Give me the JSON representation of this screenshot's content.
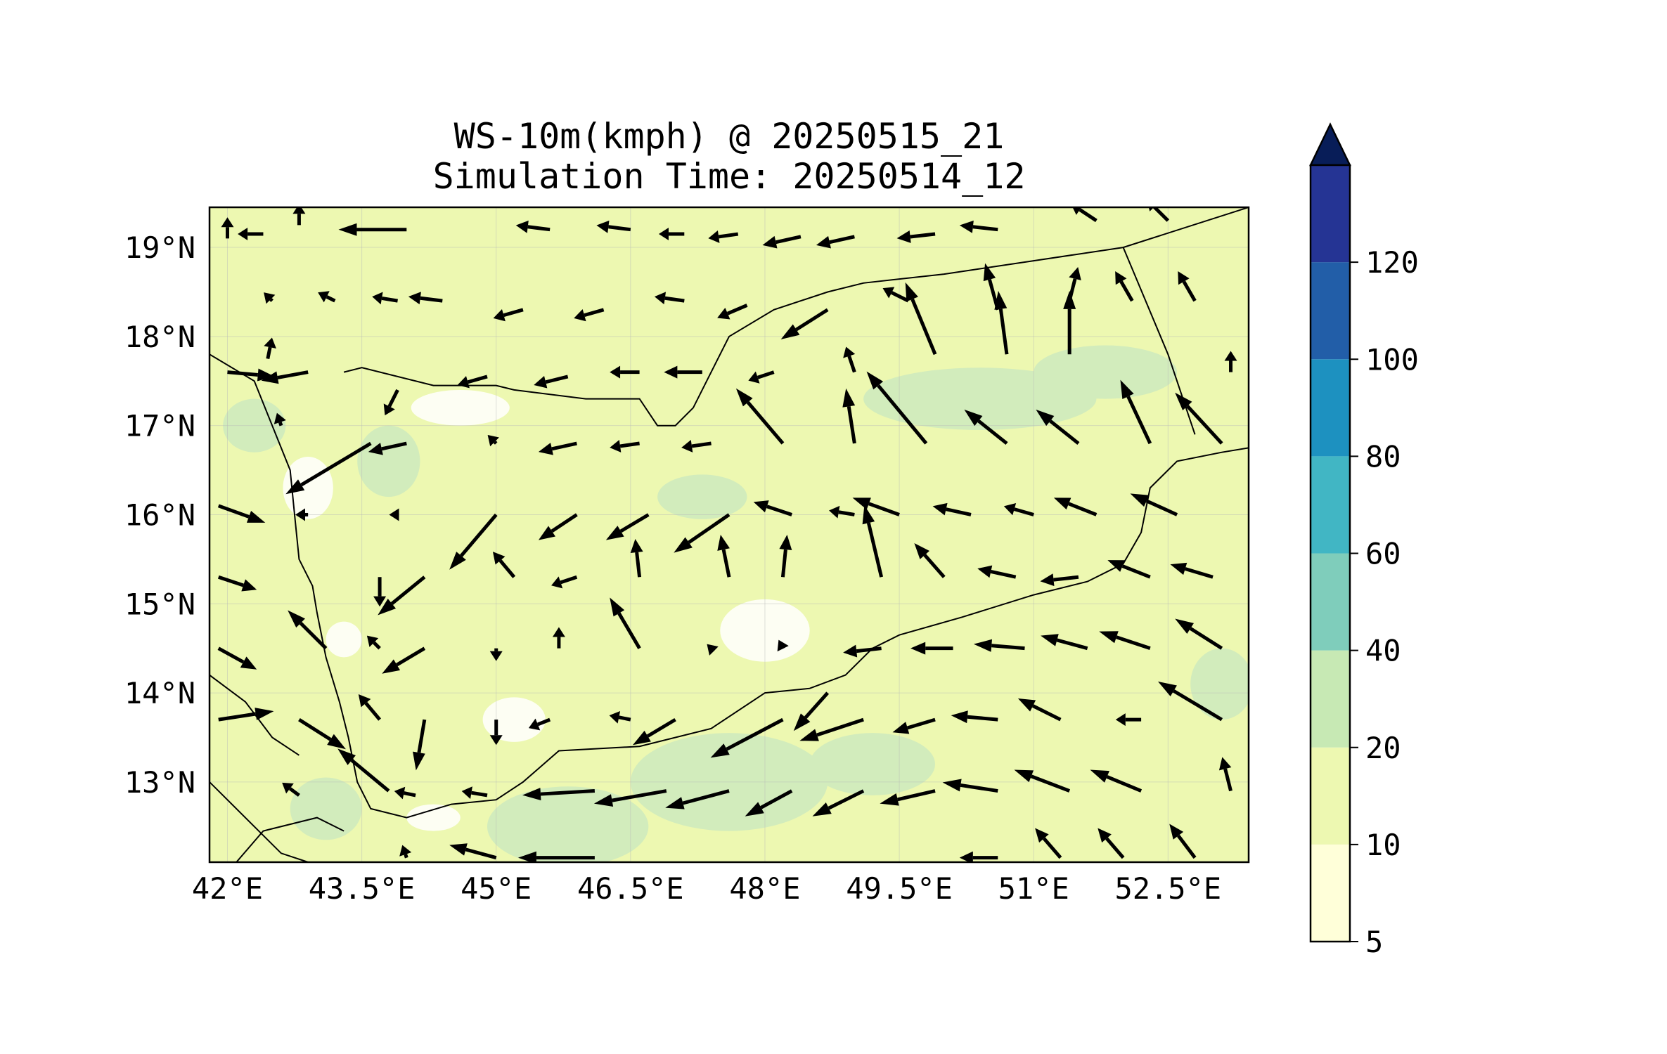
{
  "title": {
    "line1": "WS-10m(kmph) @ 20250515_21",
    "line2": "Simulation Time: 20250514_12"
  },
  "map": {
    "lon_range": [
      41.8,
      53.4
    ],
    "lat_range": [
      12.1,
      19.45
    ],
    "x_ticks": [
      {
        "value": 42.0,
        "label": "42°E"
      },
      {
        "value": 43.5,
        "label": "43.5°E"
      },
      {
        "value": 45.0,
        "label": "45°E"
      },
      {
        "value": 46.5,
        "label": "46.5°E"
      },
      {
        "value": 48.0,
        "label": "48°E"
      },
      {
        "value": 49.5,
        "label": "49.5°E"
      },
      {
        "value": 51.0,
        "label": "51°E"
      },
      {
        "value": 52.5,
        "label": "52.5°E"
      }
    ],
    "y_ticks": [
      {
        "value": 19,
        "label": "19°N"
      },
      {
        "value": 18,
        "label": "18°N"
      },
      {
        "value": 17,
        "label": "17°N"
      },
      {
        "value": 16,
        "label": "16°N"
      },
      {
        "value": 15,
        "label": "15°N"
      },
      {
        "value": 14,
        "label": "14°N"
      },
      {
        "value": 13,
        "label": "13°N"
      }
    ],
    "background_color": "#edf8b1",
    "grid": true
  },
  "colorbar": {
    "levels": [
      5,
      10,
      20,
      40,
      60,
      80,
      100,
      120
    ],
    "labels": [
      "5",
      "10",
      "20",
      "40",
      "60",
      "80",
      "100",
      "120"
    ],
    "colors": [
      "#ffffd9",
      "#edf8b1",
      "#c7e9b4",
      "#7fcdbb",
      "#41b6c4",
      "#1d91c0",
      "#225ea8",
      "#253494"
    ],
    "extend_color": "#081d58",
    "extend": "max"
  },
  "contour_patches": {
    "band_20_40_color": "#d2ecbc",
    "band_5_10_color": "#ffffff",
    "patches_20_40": [
      {
        "lon": 45.8,
        "lat": 12.5,
        "rlon": 0.9,
        "rlat": 0.45
      },
      {
        "lon": 47.6,
        "lat": 13.0,
        "rlon": 1.1,
        "rlat": 0.55
      },
      {
        "lon": 49.2,
        "lat": 13.2,
        "rlon": 0.7,
        "rlat": 0.35
      },
      {
        "lon": 50.4,
        "lat": 17.3,
        "rlon": 1.3,
        "rlat": 0.35
      },
      {
        "lon": 51.8,
        "lat": 17.6,
        "rlon": 0.8,
        "rlat": 0.3
      },
      {
        "lon": 53.1,
        "lat": 14.1,
        "rlon": 0.35,
        "rlat": 0.4
      },
      {
        "lon": 43.1,
        "lat": 12.7,
        "rlon": 0.4,
        "rlat": 0.35
      },
      {
        "lon": 42.3,
        "lat": 17.0,
        "rlon": 0.35,
        "rlat": 0.3
      },
      {
        "lon": 43.8,
        "lat": 16.6,
        "rlon": 0.35,
        "rlat": 0.4
      },
      {
        "lon": 47.3,
        "lat": 16.2,
        "rlon": 0.5,
        "rlat": 0.25
      }
    ],
    "patches_low": [
      {
        "lon": 42.9,
        "lat": 16.3,
        "rlon": 0.28,
        "rlat": 0.35
      },
      {
        "lon": 44.6,
        "lat": 17.2,
        "rlon": 0.55,
        "rlat": 0.2
      },
      {
        "lon": 48.0,
        "lat": 14.7,
        "rlon": 0.5,
        "rlat": 0.35
      },
      {
        "lon": 45.2,
        "lat": 13.7,
        "rlon": 0.35,
        "rlat": 0.25
      },
      {
        "lon": 44.3,
        "lat": 12.6,
        "rlon": 0.3,
        "rlat": 0.15
      },
      {
        "lon": 43.3,
        "lat": 14.6,
        "rlon": 0.2,
        "rlat": 0.2
      }
    ]
  },
  "wind_vectors": [
    {
      "lon": 42.0,
      "lat": 19.1,
      "u": 0.0,
      "v": 0.25
    },
    {
      "lon": 42.4,
      "lat": 19.15,
      "u": -0.3,
      "v": 0.0
    },
    {
      "lon": 42.8,
      "lat": 19.25,
      "u": 0.0,
      "v": 0.25
    },
    {
      "lon": 44.0,
      "lat": 19.2,
      "u": -0.8,
      "v": 0.0
    },
    {
      "lon": 45.6,
      "lat": 19.2,
      "u": -0.4,
      "v": 0.05
    },
    {
      "lon": 46.5,
      "lat": 19.2,
      "u": -0.4,
      "v": 0.05
    },
    {
      "lon": 47.1,
      "lat": 19.15,
      "u": -0.3,
      "v": 0.0
    },
    {
      "lon": 47.7,
      "lat": 19.15,
      "u": -0.35,
      "v": -0.05
    },
    {
      "lon": 48.4,
      "lat": 19.12,
      "u": -0.45,
      "v": -0.1
    },
    {
      "lon": 49.0,
      "lat": 19.12,
      "u": -0.45,
      "v": -0.1
    },
    {
      "lon": 49.9,
      "lat": 19.15,
      "u": -0.45,
      "v": -0.05
    },
    {
      "lon": 50.6,
      "lat": 19.2,
      "u": -0.45,
      "v": 0.05
    },
    {
      "lon": 51.7,
      "lat": 19.3,
      "u": -0.3,
      "v": 0.2
    },
    {
      "lon": 52.5,
      "lat": 19.3,
      "u": -0.25,
      "v": 0.25
    },
    {
      "lon": 42.5,
      "lat": 18.4,
      "u": -0.1,
      "v": 0.1
    },
    {
      "lon": 43.2,
      "lat": 18.4,
      "u": -0.2,
      "v": 0.1
    },
    {
      "lon": 43.9,
      "lat": 18.4,
      "u": -0.3,
      "v": 0.05
    },
    {
      "lon": 44.4,
      "lat": 18.4,
      "u": -0.4,
      "v": 0.05
    },
    {
      "lon": 45.3,
      "lat": 18.3,
      "u": -0.35,
      "v": -0.1
    },
    {
      "lon": 46.2,
      "lat": 18.3,
      "u": -0.35,
      "v": -0.1
    },
    {
      "lon": 47.1,
      "lat": 18.4,
      "u": -0.35,
      "v": 0.05
    },
    {
      "lon": 47.8,
      "lat": 18.35,
      "u": -0.35,
      "v": -0.15
    },
    {
      "lon": 48.7,
      "lat": 18.3,
      "u": -0.55,
      "v": -0.35
    },
    {
      "lon": 49.6,
      "lat": 18.4,
      "u": -0.3,
      "v": 0.15
    },
    {
      "lon": 49.9,
      "lat": 17.8,
      "u": -0.35,
      "v": 0.85
    },
    {
      "lon": 50.7,
      "lat": 17.8,
      "u": -0.1,
      "v": 0.75
    },
    {
      "lon": 51.4,
      "lat": 17.8,
      "u": 0.0,
      "v": 0.75
    },
    {
      "lon": 50.6,
      "lat": 18.3,
      "u": -0.15,
      "v": 0.55
    },
    {
      "lon": 51.4,
      "lat": 18.4,
      "u": 0.1,
      "v": 0.4
    },
    {
      "lon": 52.1,
      "lat": 18.4,
      "u": -0.2,
      "v": 0.35
    },
    {
      "lon": 52.8,
      "lat": 18.4,
      "u": -0.2,
      "v": 0.35
    },
    {
      "lon": 42.0,
      "lat": 17.6,
      "u": 0.55,
      "v": -0.05
    },
    {
      "lon": 42.9,
      "lat": 17.6,
      "u": -0.55,
      "v": -0.1
    },
    {
      "lon": 42.45,
      "lat": 17.75,
      "u": 0.05,
      "v": 0.25
    },
    {
      "lon": 43.9,
      "lat": 17.4,
      "u": -0.15,
      "v": -0.3
    },
    {
      "lon": 44.9,
      "lat": 17.55,
      "u": -0.35,
      "v": -0.1
    },
    {
      "lon": 45.8,
      "lat": 17.55,
      "u": -0.4,
      "v": -0.1
    },
    {
      "lon": 46.6,
      "lat": 17.6,
      "u": -0.35,
      "v": 0.0
    },
    {
      "lon": 47.3,
      "lat": 17.6,
      "u": -0.45,
      "v": 0.0
    },
    {
      "lon": 48.1,
      "lat": 17.6,
      "u": -0.3,
      "v": -0.1
    },
    {
      "lon": 48.2,
      "lat": 16.8,
      "u": -0.55,
      "v": 0.65
    },
    {
      "lon": 49.0,
      "lat": 16.8,
      "u": -0.1,
      "v": 0.65
    },
    {
      "lon": 49.0,
      "lat": 17.6,
      "u": -0.1,
      "v": 0.3
    },
    {
      "lon": 49.8,
      "lat": 16.8,
      "u": -0.7,
      "v": 0.85
    },
    {
      "lon": 50.7,
      "lat": 16.8,
      "u": -0.5,
      "v": 0.4
    },
    {
      "lon": 51.5,
      "lat": 16.8,
      "u": -0.5,
      "v": 0.4
    },
    {
      "lon": 52.3,
      "lat": 16.8,
      "u": -0.35,
      "v": 0.75
    },
    {
      "lon": 53.1,
      "lat": 16.8,
      "u": -0.55,
      "v": 0.6
    },
    {
      "lon": 53.2,
      "lat": 17.6,
      "u": 0.0,
      "v": 0.25
    },
    {
      "lon": 42.6,
      "lat": 17.0,
      "u": -0.05,
      "v": 0.15
    },
    {
      "lon": 43.6,
      "lat": 16.8,
      "u": -1.0,
      "v": -0.6
    },
    {
      "lon": 44.0,
      "lat": 16.8,
      "u": -0.45,
      "v": -0.1
    },
    {
      "lon": 45.0,
      "lat": 16.8,
      "u": -0.1,
      "v": 0.1
    },
    {
      "lon": 45.9,
      "lat": 16.8,
      "u": -0.45,
      "v": -0.1
    },
    {
      "lon": 46.6,
      "lat": 16.8,
      "u": -0.35,
      "v": -0.05
    },
    {
      "lon": 47.4,
      "lat": 16.8,
      "u": -0.35,
      "v": -0.05
    },
    {
      "lon": 41.9,
      "lat": 16.1,
      "u": 0.55,
      "v": -0.2
    },
    {
      "lon": 42.9,
      "lat": 16.0,
      "u": -0.15,
      "v": 0.0
    },
    {
      "lon": 43.9,
      "lat": 16.0,
      "u": -0.1,
      "v": 0.0
    },
    {
      "lon": 45.0,
      "lat": 16.0,
      "u": -0.55,
      "v": -0.65
    },
    {
      "lon": 45.9,
      "lat": 16.0,
      "u": -0.45,
      "v": -0.3
    },
    {
      "lon": 46.7,
      "lat": 16.0,
      "u": -0.5,
      "v": -0.3
    },
    {
      "lon": 47.6,
      "lat": 16.0,
      "u": -0.65,
      "v": -0.45
    },
    {
      "lon": 48.3,
      "lat": 16.0,
      "u": -0.45,
      "v": 0.15
    },
    {
      "lon": 49.0,
      "lat": 16.0,
      "u": -0.3,
      "v": 0.05
    },
    {
      "lon": 49.5,
      "lat": 16.0,
      "u": -0.55,
      "v": 0.2
    },
    {
      "lon": 50.3,
      "lat": 16.0,
      "u": -0.45,
      "v": 0.1
    },
    {
      "lon": 51.0,
      "lat": 16.0,
      "u": -0.35,
      "v": 0.1
    },
    {
      "lon": 51.7,
      "lat": 16.0,
      "u": -0.5,
      "v": 0.2
    },
    {
      "lon": 52.6,
      "lat": 16.0,
      "u": -0.55,
      "v": 0.25
    },
    {
      "lon": 41.9,
      "lat": 15.3,
      "u": 0.45,
      "v": -0.15
    },
    {
      "lon": 43.7,
      "lat": 15.3,
      "u": 0.0,
      "v": -0.35
    },
    {
      "lon": 44.2,
      "lat": 15.3,
      "u": -0.55,
      "v": -0.45
    },
    {
      "lon": 45.2,
      "lat": 15.3,
      "u": -0.25,
      "v": 0.3
    },
    {
      "lon": 45.9,
      "lat": 15.3,
      "u": -0.3,
      "v": -0.1
    },
    {
      "lon": 46.6,
      "lat": 15.3,
      "u": -0.05,
      "v": 0.45
    },
    {
      "lon": 47.6,
      "lat": 15.3,
      "u": -0.1,
      "v": 0.5
    },
    {
      "lon": 48.2,
      "lat": 15.3,
      "u": 0.05,
      "v": 0.5
    },
    {
      "lon": 49.3,
      "lat": 15.3,
      "u": -0.2,
      "v": 0.85
    },
    {
      "lon": 50.0,
      "lat": 15.3,
      "u": -0.35,
      "v": 0.4
    },
    {
      "lon": 50.8,
      "lat": 15.3,
      "u": -0.45,
      "v": 0.1
    },
    {
      "lon": 51.5,
      "lat": 15.3,
      "u": -0.45,
      "v": -0.05
    },
    {
      "lon": 52.3,
      "lat": 15.3,
      "u": -0.5,
      "v": 0.2
    },
    {
      "lon": 53.0,
      "lat": 15.3,
      "u": -0.5,
      "v": 0.15
    },
    {
      "lon": 41.9,
      "lat": 14.5,
      "u": 0.45,
      "v": -0.25
    },
    {
      "lon": 43.1,
      "lat": 14.5,
      "u": -0.45,
      "v": 0.45
    },
    {
      "lon": 43.7,
      "lat": 14.5,
      "u": -0.15,
      "v": 0.15
    },
    {
      "lon": 44.2,
      "lat": 14.5,
      "u": -0.5,
      "v": -0.3
    },
    {
      "lon": 45.0,
      "lat": 14.5,
      "u": 0.0,
      "v": -0.15
    },
    {
      "lon": 45.7,
      "lat": 14.5,
      "u": 0.0,
      "v": 0.25
    },
    {
      "lon": 46.6,
      "lat": 14.5,
      "u": -0.35,
      "v": 0.6
    },
    {
      "lon": 47.4,
      "lat": 14.5,
      "u": -0.05,
      "v": 0.05
    },
    {
      "lon": 48.2,
      "lat": 14.5,
      "u": -0.05,
      "v": 0.1
    },
    {
      "lon": 48.7,
      "lat": 14.0,
      "u": -0.4,
      "v": -0.45
    },
    {
      "lon": 49.3,
      "lat": 14.5,
      "u": -0.45,
      "v": -0.05
    },
    {
      "lon": 50.1,
      "lat": 14.5,
      "u": -0.5,
      "v": 0.0
    },
    {
      "lon": 50.9,
      "lat": 14.5,
      "u": -0.6,
      "v": 0.05
    },
    {
      "lon": 51.6,
      "lat": 14.5,
      "u": -0.55,
      "v": 0.15
    },
    {
      "lon": 52.3,
      "lat": 14.5,
      "u": -0.6,
      "v": 0.2
    },
    {
      "lon": 53.1,
      "lat": 14.5,
      "u": -0.55,
      "v": 0.35
    },
    {
      "lon": 41.9,
      "lat": 13.7,
      "u": 0.65,
      "v": 0.1
    },
    {
      "lon": 42.8,
      "lat": 13.7,
      "u": 0.55,
      "v": -0.35
    },
    {
      "lon": 43.7,
      "lat": 13.7,
      "u": -0.25,
      "v": 0.3
    },
    {
      "lon": 44.2,
      "lat": 13.7,
      "u": -0.1,
      "v": -0.6
    },
    {
      "lon": 45.0,
      "lat": 13.7,
      "u": 0.0,
      "v": -0.3
    },
    {
      "lon": 45.6,
      "lat": 13.7,
      "u": -0.25,
      "v": -0.1
    },
    {
      "lon": 46.5,
      "lat": 13.7,
      "u": -0.25,
      "v": 0.05
    },
    {
      "lon": 47.0,
      "lat": 13.7,
      "u": -0.5,
      "v": -0.3
    },
    {
      "lon": 48.2,
      "lat": 13.7,
      "u": -0.85,
      "v": -0.45
    },
    {
      "lon": 49.1,
      "lat": 13.7,
      "u": -0.75,
      "v": -0.25
    },
    {
      "lon": 49.9,
      "lat": 13.7,
      "u": -0.5,
      "v": -0.15
    },
    {
      "lon": 50.6,
      "lat": 13.7,
      "u": -0.55,
      "v": 0.05
    },
    {
      "lon": 51.3,
      "lat": 13.7,
      "u": -0.5,
      "v": 0.25
    },
    {
      "lon": 52.2,
      "lat": 13.7,
      "u": -0.3,
      "v": 0.0
    },
    {
      "lon": 53.1,
      "lat": 13.7,
      "u": -0.75,
      "v": 0.45
    },
    {
      "lon": 42.8,
      "lat": 12.85,
      "u": -0.2,
      "v": 0.15
    },
    {
      "lon": 43.8,
      "lat": 12.9,
      "u": -0.6,
      "v": 0.5
    },
    {
      "lon": 44.1,
      "lat": 12.85,
      "u": -0.25,
      "v": 0.05
    },
    {
      "lon": 44.9,
      "lat": 12.85,
      "u": -0.3,
      "v": 0.05
    },
    {
      "lon": 46.1,
      "lat": 12.9,
      "u": -0.85,
      "v": -0.05
    },
    {
      "lon": 46.9,
      "lat": 12.9,
      "u": -0.85,
      "v": -0.15
    },
    {
      "lon": 47.6,
      "lat": 12.9,
      "u": -0.75,
      "v": -0.2
    },
    {
      "lon": 48.3,
      "lat": 12.9,
      "u": -0.55,
      "v": -0.3
    },
    {
      "lon": 49.1,
      "lat": 12.9,
      "u": -0.6,
      "v": -0.3
    },
    {
      "lon": 49.9,
      "lat": 12.9,
      "u": -0.65,
      "v": -0.15
    },
    {
      "lon": 50.6,
      "lat": 12.9,
      "u": -0.65,
      "v": 0.1
    },
    {
      "lon": 51.4,
      "lat": 12.9,
      "u": -0.65,
      "v": 0.25
    },
    {
      "lon": 52.2,
      "lat": 12.9,
      "u": -0.6,
      "v": 0.25
    },
    {
      "lon": 53.2,
      "lat": 12.9,
      "u": -0.1,
      "v": 0.4
    },
    {
      "lon": 44.0,
      "lat": 12.15,
      "u": -0.05,
      "v": 0.15
    },
    {
      "lon": 45.0,
      "lat": 12.15,
      "u": -0.55,
      "v": 0.15
    },
    {
      "lon": 46.1,
      "lat": 12.15,
      "u": -0.9,
      "v": 0.0
    },
    {
      "lon": 50.6,
      "lat": 12.15,
      "u": -0.45,
      "v": 0.0
    },
    {
      "lon": 51.3,
      "lat": 12.15,
      "u": -0.3,
      "v": 0.35
    },
    {
      "lon": 52.0,
      "lat": 12.15,
      "u": -0.3,
      "v": 0.35
    },
    {
      "lon": 52.8,
      "lat": 12.15,
      "u": -0.3,
      "v": 0.4
    }
  ],
  "coastlines": {
    "arabia_sw_coast": [
      [
        41.8,
        17.8
      ],
      [
        42.3,
        17.5
      ],
      [
        42.5,
        17.0
      ],
      [
        42.7,
        16.5
      ],
      [
        42.75,
        16.0
      ],
      [
        42.8,
        15.5
      ],
      [
        42.95,
        15.2
      ],
      [
        43.0,
        14.9
      ],
      [
        43.1,
        14.4
      ],
      [
        43.25,
        13.9
      ],
      [
        43.35,
        13.5
      ],
      [
        43.45,
        13.0
      ],
      [
        43.6,
        12.7
      ],
      [
        44.0,
        12.6
      ],
      [
        44.5,
        12.75
      ],
      [
        45.0,
        12.8
      ],
      [
        45.3,
        13.0
      ],
      [
        45.7,
        13.35
      ],
      [
        46.6,
        13.4
      ],
      [
        47.4,
        13.6
      ],
      [
        48.0,
        14.0
      ],
      [
        48.5,
        14.05
      ],
      [
        48.9,
        14.2
      ],
      [
        49.2,
        14.5
      ],
      [
        49.5,
        14.65
      ],
      [
        50.2,
        14.85
      ],
      [
        51.0,
        15.1
      ],
      [
        51.6,
        15.25
      ],
      [
        52.0,
        15.45
      ],
      [
        52.2,
        15.8
      ],
      [
        52.3,
        16.3
      ],
      [
        52.6,
        16.6
      ],
      [
        53.1,
        16.7
      ],
      [
        53.4,
        16.75
      ]
    ],
    "farasan_coast": [
      [
        43.3,
        17.6
      ],
      [
        43.5,
        17.65
      ],
      [
        44.3,
        17.45
      ],
      [
        45.0,
        17.45
      ],
      [
        45.2,
        17.4
      ],
      [
        46.0,
        17.3
      ],
      [
        46.6,
        17.3
      ],
      [
        46.8,
        17.0
      ],
      [
        47.0,
        17.0
      ],
      [
        47.2,
        17.2
      ],
      [
        47.4,
        17.6
      ],
      [
        47.6,
        18.0
      ],
      [
        48.1,
        18.3
      ],
      [
        48.7,
        18.5
      ],
      [
        49.1,
        18.6
      ],
      [
        50.0,
        18.7
      ],
      [
        51.0,
        18.85
      ],
      [
        52.0,
        19.0
      ],
      [
        53.4,
        19.45
      ]
    ],
    "border_east": [
      [
        52.0,
        19.0
      ],
      [
        52.5,
        17.8
      ],
      [
        52.8,
        16.9
      ]
    ],
    "africa_coast": [
      [
        41.8,
        13.0
      ],
      [
        42.3,
        12.5
      ],
      [
        42.6,
        12.2
      ],
      [
        42.9,
        12.1
      ]
    ],
    "africa_inner": [
      [
        42.1,
        12.1
      ],
      [
        42.4,
        12.45
      ],
      [
        43.0,
        12.6
      ],
      [
        43.3,
        12.45
      ]
    ],
    "red_sea_west": [
      [
        41.8,
        14.2
      ],
      [
        42.2,
        13.9
      ],
      [
        42.5,
        13.5
      ],
      [
        42.8,
        13.3
      ]
    ]
  }
}
